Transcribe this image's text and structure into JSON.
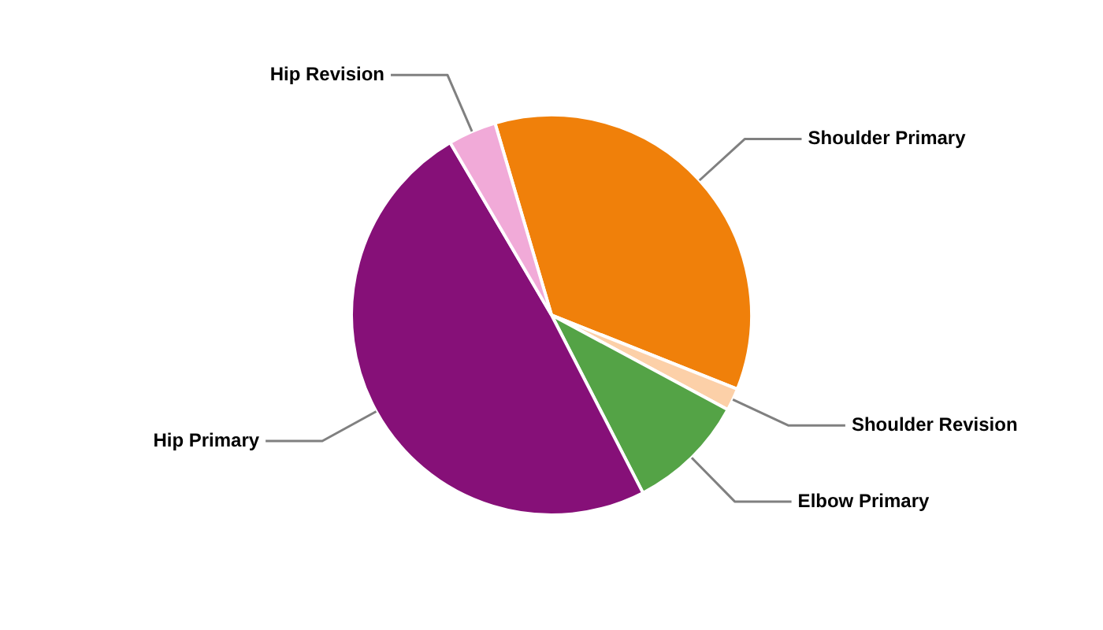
{
  "chart_data": {
    "type": "pie",
    "categories": [
      "Shoulder Primary",
      "Shoulder Revision",
      "Elbow Primary",
      "Hip Primary",
      "Hip Revision"
    ],
    "values": [
      35.6,
      1.8,
      9.6,
      49.1,
      3.9
    ],
    "colors": [
      "#f0800a",
      "#fcd0a8",
      "#54a346",
      "#861078",
      "#f1aad8"
    ]
  }
}
